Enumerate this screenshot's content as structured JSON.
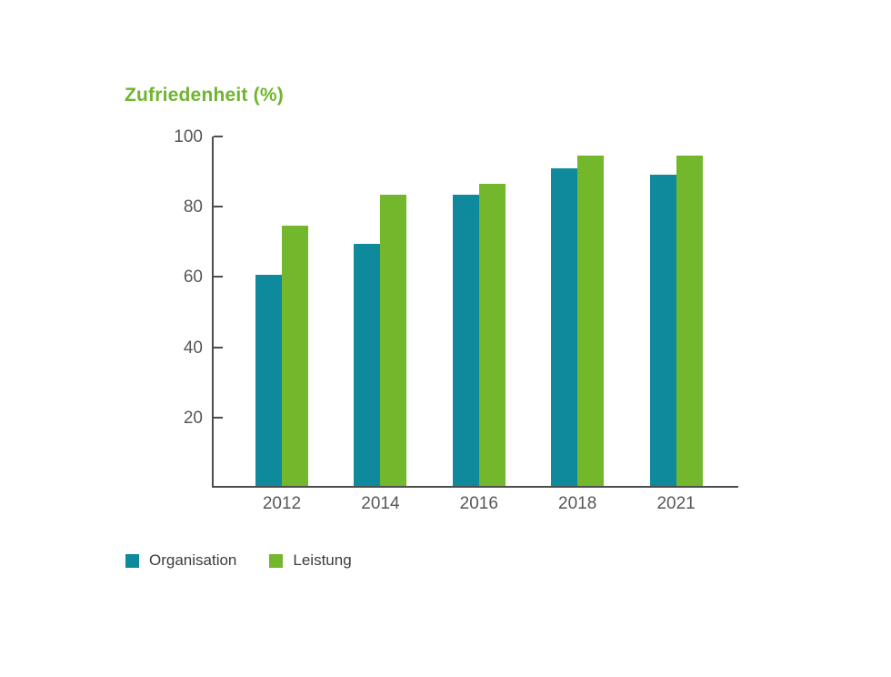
{
  "chart_data": {
    "type": "bar",
    "title": "Zufriedenheit (%)",
    "categories": [
      "2012",
      "2014",
      "2016",
      "2018",
      "2021"
    ],
    "series": [
      {
        "name": "Organisation",
        "color": "#0E8A9C",
        "values": [
          60,
          69,
          83,
          90.5,
          88.5
        ]
      },
      {
        "name": "Leistung",
        "color": "#72B72C",
        "values": [
          74,
          83,
          86,
          94,
          94
        ]
      }
    ],
    "xlabel": "",
    "ylabel": "",
    "ylim": [
      0,
      100
    ],
    "yticks": [
      20,
      40,
      60,
      80,
      100
    ],
    "grid": false,
    "legend_position": "bottom-left"
  },
  "colors": {
    "title": "#6FB52E",
    "axis": "#4D4D4D",
    "tick_label": "#575756",
    "legend_text": "#3C3C3B",
    "background": "#FFFFFF"
  }
}
